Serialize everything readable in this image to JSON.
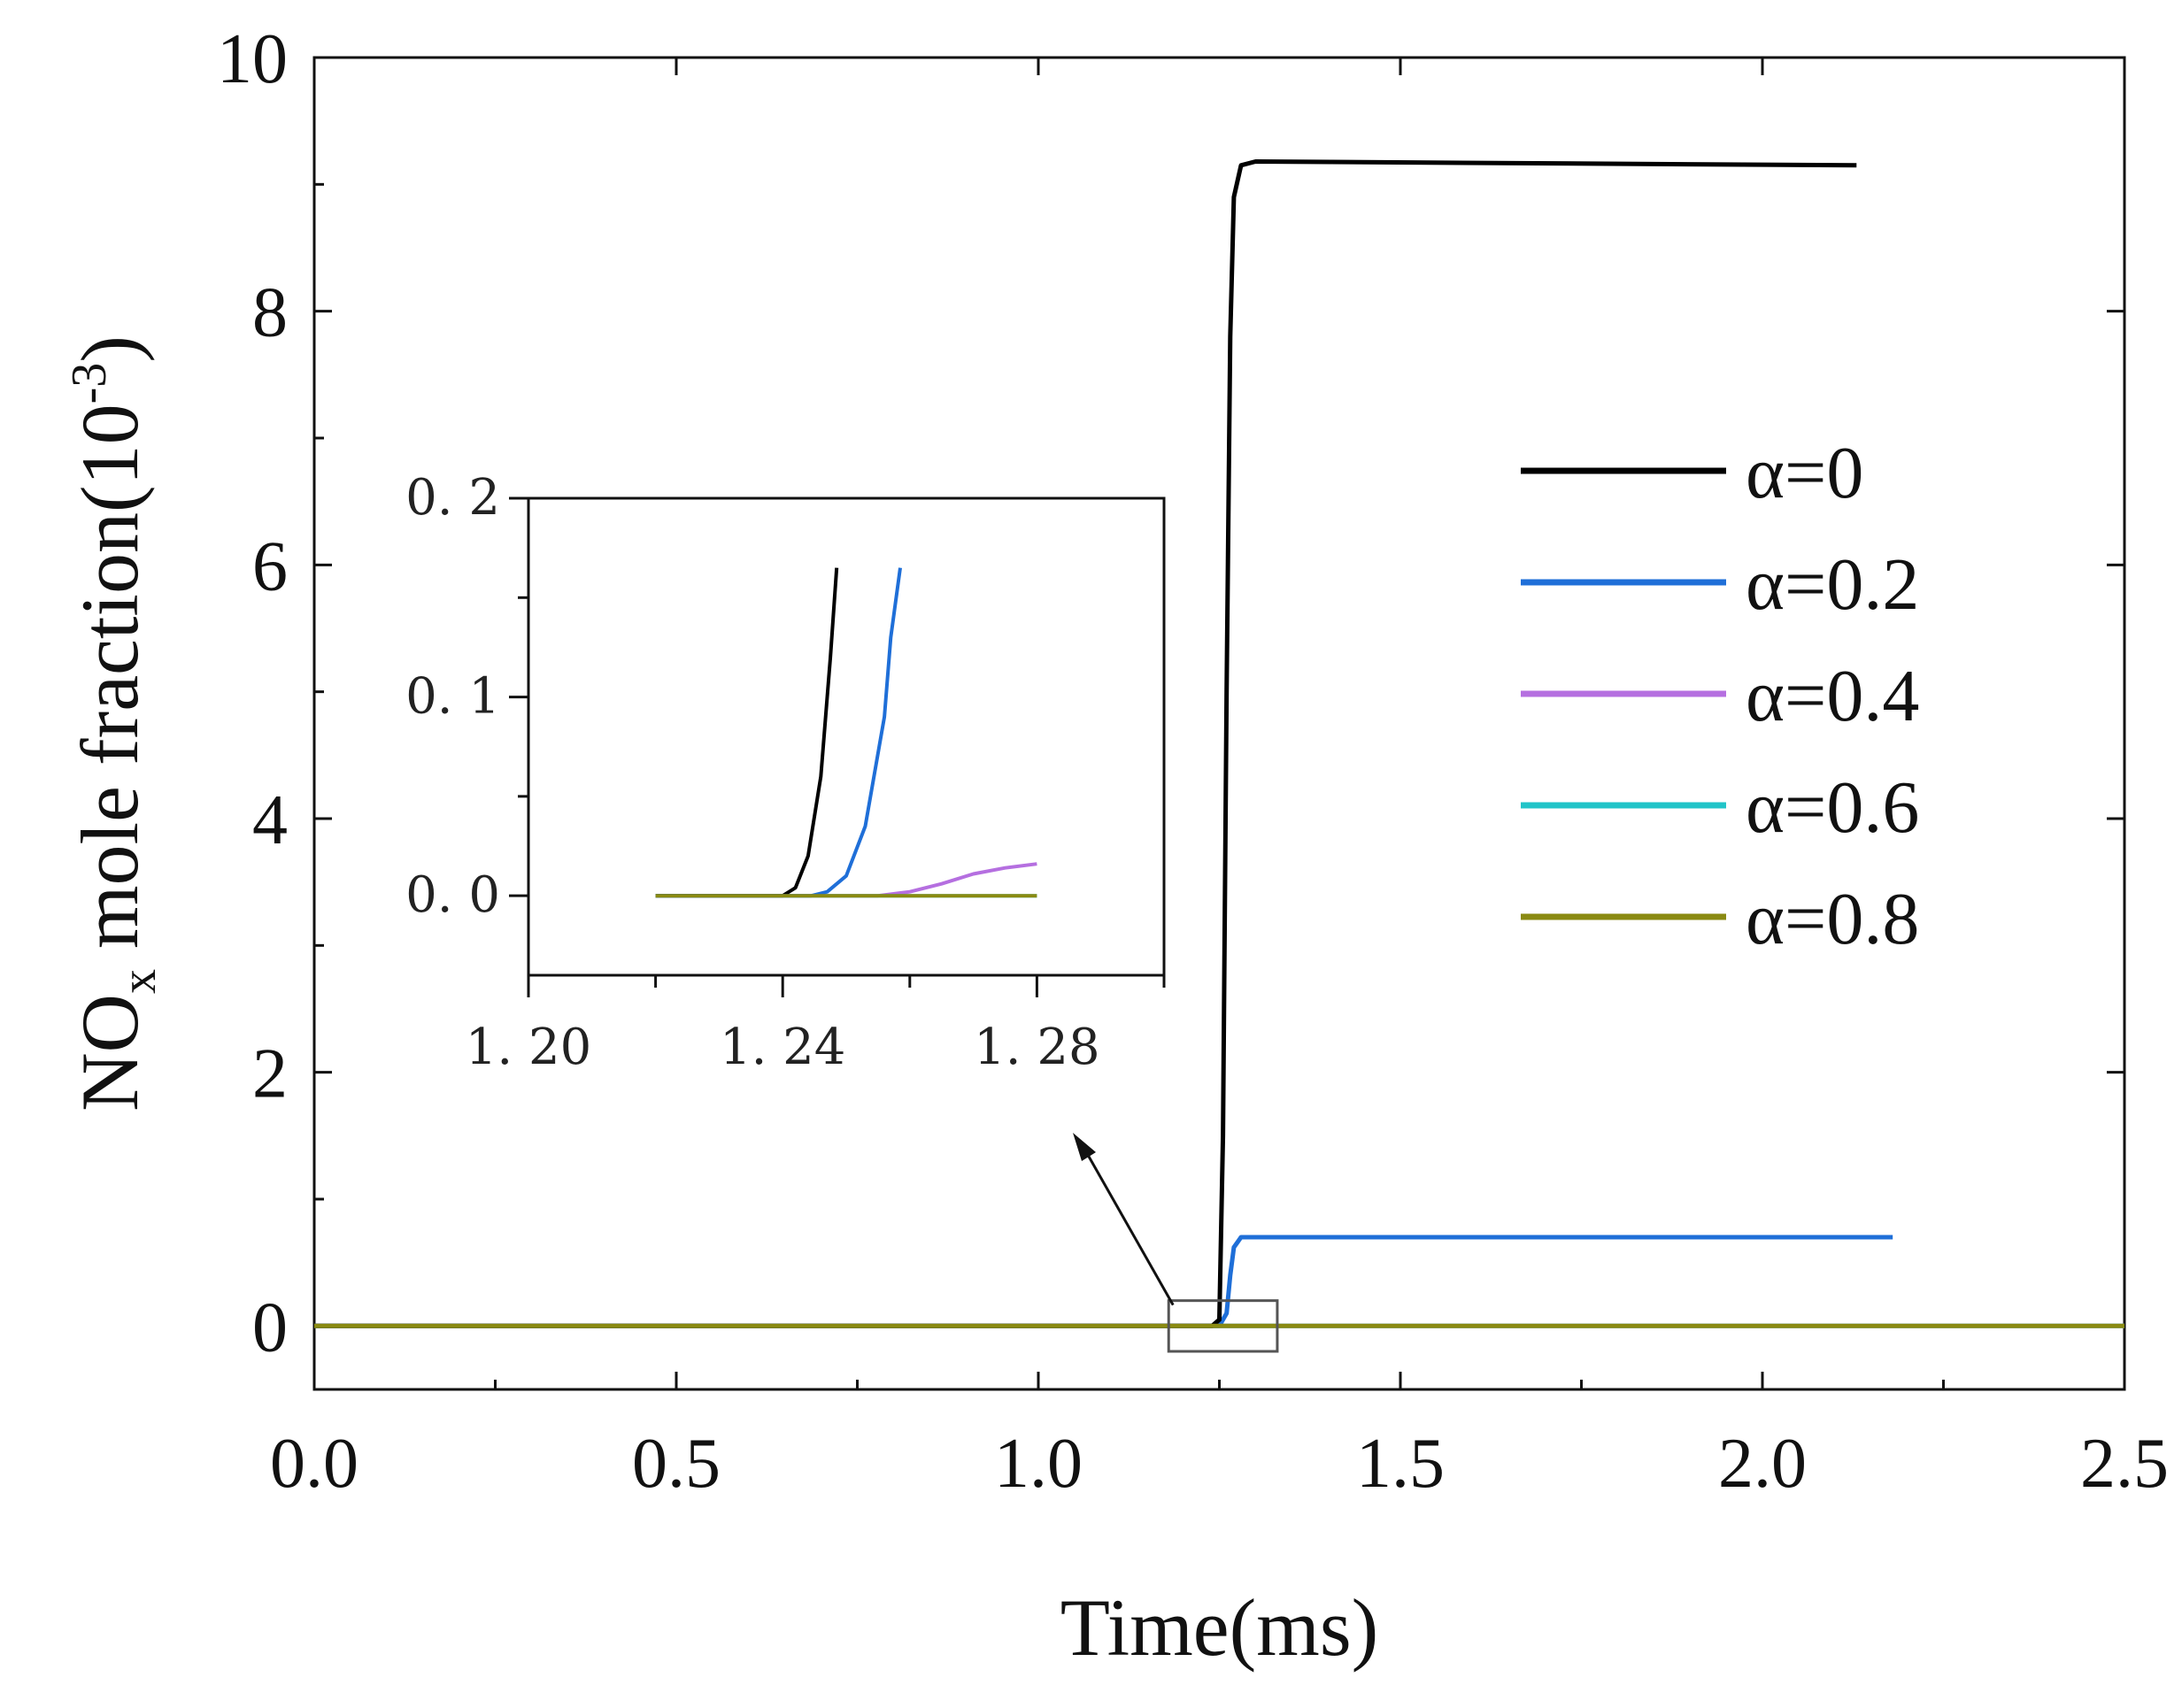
{
  "chart_data": [
    {
      "type": "line",
      "xlabel": "Time(ms)",
      "ylabel": {
        "prefix": "NO",
        "subscript": "x",
        "middle": " mole fraction(10",
        "superscript": "-3",
        "suffix": ")"
      },
      "xlim": [
        0.0,
        2.5
      ],
      "ylim": [
        -0.5,
        10
      ],
      "x_ticks": [
        "0.0",
        "0.5",
        "1.0",
        "1.5",
        "2.0",
        "2.5"
      ],
      "y_ticks": [
        "0",
        "2",
        "4",
        "6",
        "8",
        "10"
      ],
      "legend_position": "right",
      "series": [
        {
          "name": "α=0",
          "color": "#000000",
          "x": [
            0.0,
            1.24,
            1.25,
            1.255,
            1.26,
            1.265,
            1.27,
            1.28,
            1.3,
            2.13
          ],
          "y": [
            0.0,
            0.0,
            0.05,
            1.5,
            5.0,
            7.8,
            8.9,
            9.15,
            9.18,
            9.15
          ]
        },
        {
          "name": "α=0.2",
          "color": "#1f6fd8",
          "x": [
            0.0,
            1.25,
            1.26,
            1.265,
            1.27,
            1.28,
            1.3,
            2.18
          ],
          "y": [
            0.0,
            0.0,
            0.1,
            0.4,
            0.62,
            0.7,
            0.7,
            0.7
          ]
        },
        {
          "name": "α=0.4",
          "color": "#b56fe0",
          "x": [
            0.0,
            2.5
          ],
          "y": [
            0.0,
            0.0
          ]
        },
        {
          "name": "α=0.6",
          "color": "#22c4c8",
          "x": [
            0.0,
            2.5
          ],
          "y": [
            0.0,
            0.0
          ]
        },
        {
          "name": "α=0.8",
          "color": "#8a8a12",
          "x": [
            0.0,
            2.5
          ],
          "y": [
            0.0,
            0.0
          ]
        }
      ],
      "annotation": "zoom box around t≈1.25 ms with arrow to inset"
    },
    {
      "type": "line",
      "role": "inset",
      "xlim": [
        1.2,
        1.3
      ],
      "ylim": [
        -0.04,
        0.2
      ],
      "x_ticks": [
        "1. 20",
        "1. 24",
        "1. 28"
      ],
      "y_ticks": [
        "0. 0",
        "0. 1",
        "0. 2"
      ],
      "series": [
        {
          "name": "α=0",
          "color": "#000000",
          "x": [
            1.22,
            1.24,
            1.242,
            1.244,
            1.246,
            1.2475,
            1.2485
          ],
          "y": [
            0.0,
            0.0,
            0.004,
            0.02,
            0.06,
            0.12,
            0.165
          ]
        },
        {
          "name": "α=0.2",
          "color": "#1f6fd8",
          "x": [
            1.22,
            1.2445,
            1.247,
            1.25,
            1.253,
            1.256,
            1.257,
            1.2585
          ],
          "y": [
            0.0,
            0.0,
            0.002,
            0.01,
            0.035,
            0.09,
            0.13,
            0.165
          ]
        },
        {
          "name": "α=0.4",
          "color": "#b56fe0",
          "x": [
            1.22,
            1.255,
            1.26,
            1.265,
            1.27,
            1.275,
            1.28
          ],
          "y": [
            0.0,
            0.0,
            0.002,
            0.006,
            0.011,
            0.014,
            0.016
          ]
        },
        {
          "name": "α=0.6",
          "color": "#22c4c8",
          "x": [
            1.22,
            1.28
          ],
          "y": [
            0.0,
            0.0
          ]
        },
        {
          "name": "α=0.8",
          "color": "#8a8a12",
          "x": [
            1.22,
            1.28
          ],
          "y": [
            0.0,
            0.0
          ]
        }
      ]
    }
  ]
}
